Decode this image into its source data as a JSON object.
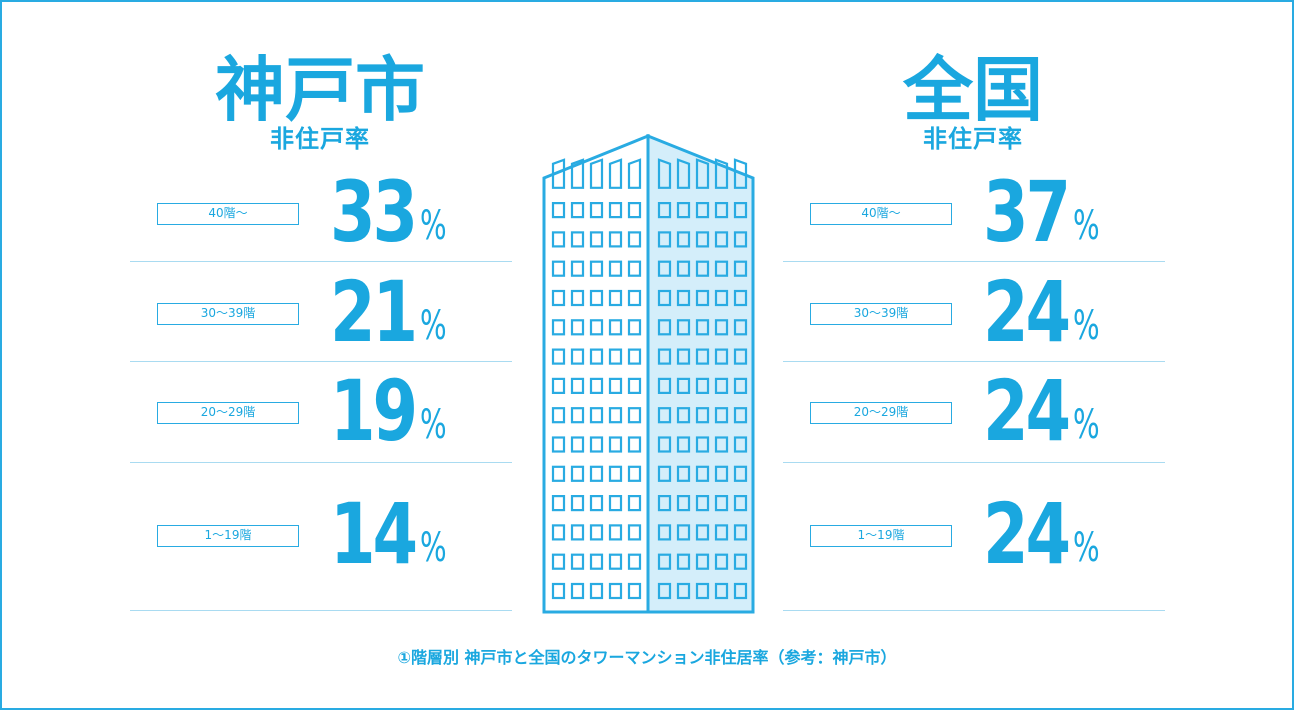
{
  "chart_data": {
    "type": "table",
    "regions": [
      {
        "name": "神戸市",
        "subtitle": "非住戸率",
        "rows": [
          {
            "label": "40階〜",
            "value": 33,
            "unit": "%"
          },
          {
            "label": "30〜39階",
            "value": 21,
            "unit": "%"
          },
          {
            "label": "20〜29階",
            "value": 19,
            "unit": "%"
          },
          {
            "label": "1〜19階",
            "value": 14,
            "unit": "%"
          }
        ]
      },
      {
        "name": "全国",
        "subtitle": "非住戸率",
        "rows": [
          {
            "label": "40階〜",
            "value": 37,
            "unit": "%"
          },
          {
            "label": "30〜39階",
            "value": 24,
            "unit": "%"
          },
          {
            "label": "20〜29階",
            "value": 24,
            "unit": "%"
          },
          {
            "label": "1〜19階",
            "value": 24,
            "unit": "%"
          }
        ]
      }
    ],
    "caption": "①階層別 神戸市と全国のタワーマンション非住居率（参考：神戸市）"
  },
  "colors": {
    "accent": "#1aa7df",
    "border": "#29abe2",
    "separator": "#a9dbf1",
    "building_side": "#d4eefa"
  },
  "icons": {
    "center": "building-icon"
  }
}
